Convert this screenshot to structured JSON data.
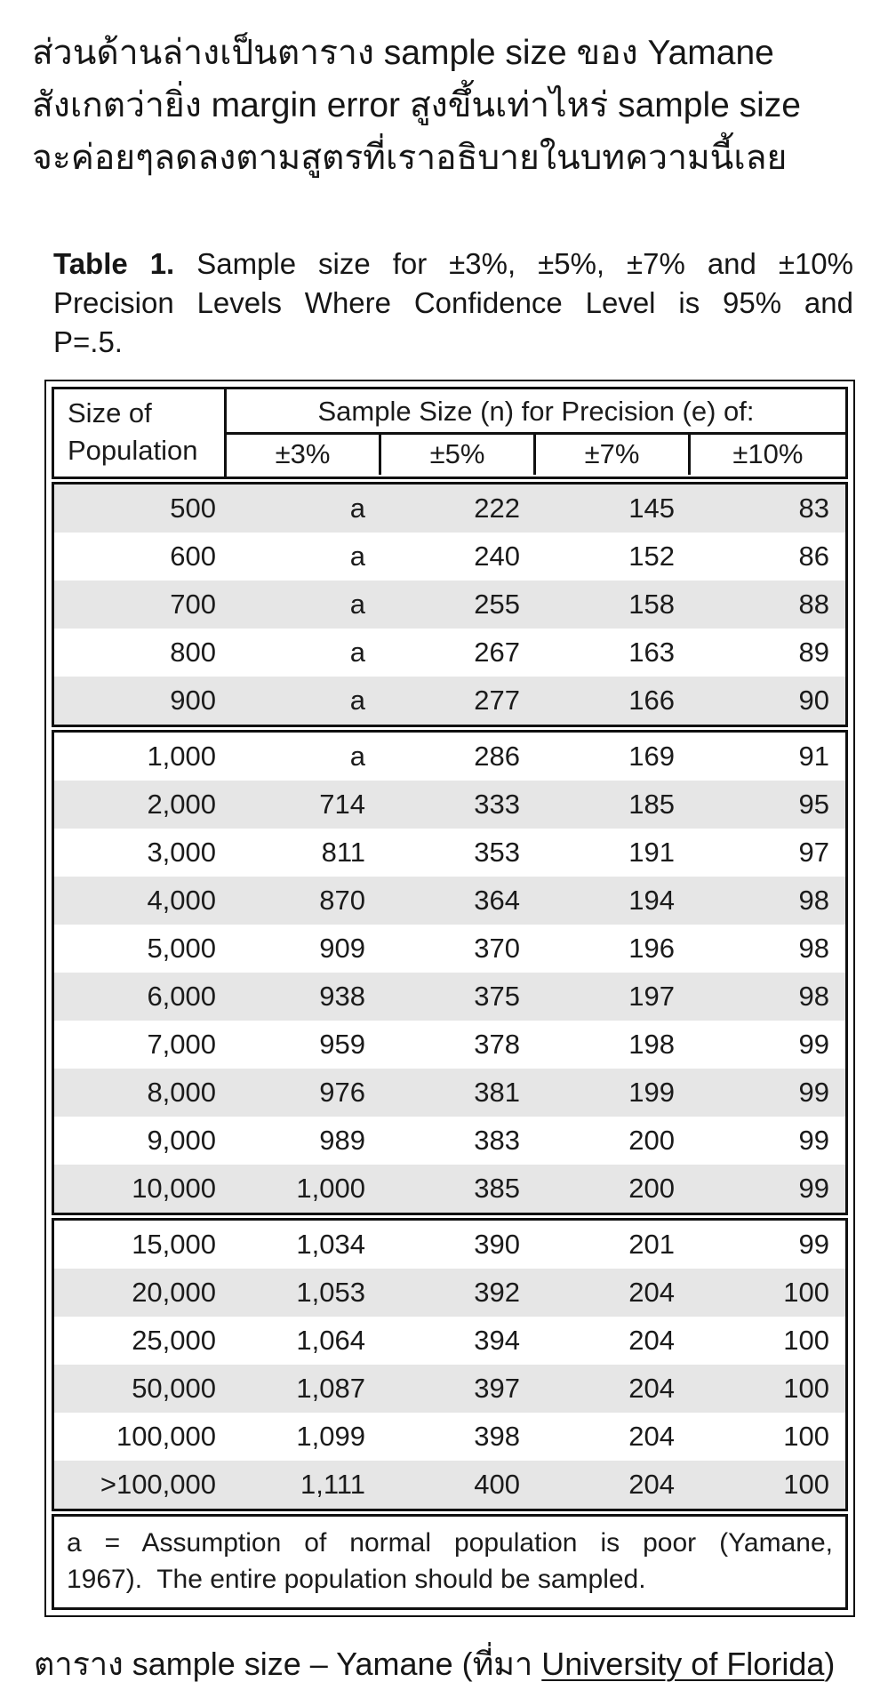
{
  "intro": {
    "lines": [
      "ส่วนด้านล่างเป็นตาราง sample size ของ Yamane",
      "สังเกตว่ายิ่ง margin error สูงขึ้นเท่าไหร่ sample size",
      "จะค่อยๆลดลงตามสูตรที่เราอธิบายในบทความนี้เลย"
    ]
  },
  "table_title": {
    "label": "Table 1.",
    "line1_rest": "Sample size for ±3%, ±5%, ±7% and ±10%",
    "line2": "Precision Levels Where Confidence Level is 95% and",
    "line3": "P=.5."
  },
  "table": {
    "corner_header_line1": "Size of",
    "corner_header_line2": "Population",
    "span_header": "Sample Size (n) for Precision (e) of:",
    "precision_columns": [
      "±3%",
      "±5%",
      "±7%",
      "±10%"
    ],
    "groups": [
      {
        "first_row_shaded": true,
        "rows": [
          [
            "500",
            "a",
            "222",
            "145",
            "83"
          ],
          [
            "600",
            "a",
            "240",
            "152",
            "86"
          ],
          [
            "700",
            "a",
            "255",
            "158",
            "88"
          ],
          [
            "800",
            "a",
            "267",
            "163",
            "89"
          ],
          [
            "900",
            "a",
            "277",
            "166",
            "90"
          ]
        ]
      },
      {
        "first_row_shaded": false,
        "rows": [
          [
            "1,000",
            "a",
            "286",
            "169",
            "91"
          ],
          [
            "2,000",
            "714",
            "333",
            "185",
            "95"
          ],
          [
            "3,000",
            "811",
            "353",
            "191",
            "97"
          ],
          [
            "4,000",
            "870",
            "364",
            "194",
            "98"
          ],
          [
            "5,000",
            "909",
            "370",
            "196",
            "98"
          ],
          [
            "6,000",
            "938",
            "375",
            "197",
            "98"
          ],
          [
            "7,000",
            "959",
            "378",
            "198",
            "99"
          ],
          [
            "8,000",
            "976",
            "381",
            "199",
            "99"
          ],
          [
            "9,000",
            "989",
            "383",
            "200",
            "99"
          ],
          [
            "10,000",
            "1,000",
            "385",
            "200",
            "99"
          ]
        ]
      },
      {
        "first_row_shaded": false,
        "rows": [
          [
            "15,000",
            "1,034",
            "390",
            "201",
            "99"
          ],
          [
            "20,000",
            "1,053",
            "392",
            "204",
            "100"
          ],
          [
            "25,000",
            "1,064",
            "394",
            "204",
            "100"
          ],
          [
            "50,000",
            "1,087",
            "397",
            "204",
            "100"
          ],
          [
            "100,000",
            "1,099",
            "398",
            "204",
            "100"
          ],
          [
            ">100,000",
            "1,111",
            "400",
            "204",
            "100"
          ]
        ]
      }
    ],
    "footnote_lines": [
      "a = Assumption of normal population is poor (Yamane,",
      "1967).  The entire population should be sampled."
    ]
  },
  "caption": {
    "prefix": "ตาราง sample size – Yamane (ที่มา ",
    "link": "University of Florida",
    "suffix": ")"
  },
  "colors": {
    "row_shade": "#e6e6e6",
    "border": "#101010",
    "text": "#1b1b1b"
  }
}
